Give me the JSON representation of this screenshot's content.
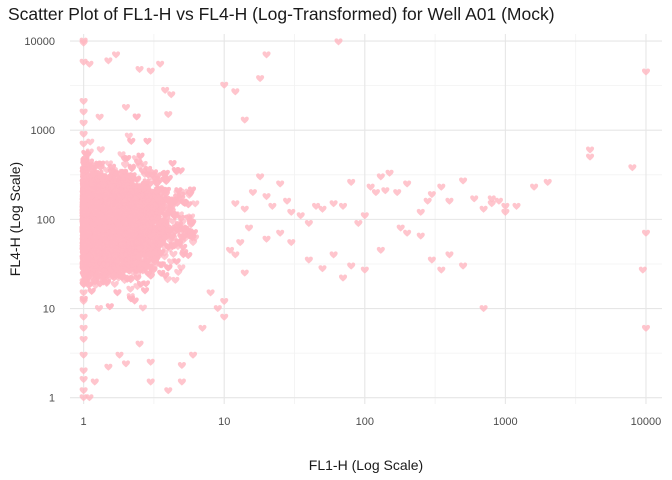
{
  "chart_data": {
    "type": "scatter",
    "title": "Scatter Plot of FL1-H vs FL4-H (Log-Transformed) for Well A01 (Mock)",
    "xlabel": "FL1-H (Log Scale)",
    "ylabel": "FL4-H (Log Scale)",
    "x_scale": "log10",
    "y_scale": "log10",
    "xlim": [
      0.8,
      13000
    ],
    "ylim": [
      0.85,
      12000
    ],
    "x_ticks": [
      1,
      10,
      100,
      1000,
      10000
    ],
    "x_tick_labels": [
      "1",
      "10",
      "100",
      "1000",
      "10000"
    ],
    "y_ticks": [
      1,
      10,
      100,
      1000,
      10000
    ],
    "y_tick_labels": [
      "1",
      "10",
      "100",
      "1000",
      "10000"
    ],
    "grid": true,
    "legend": "none",
    "marker": "heart",
    "point_color": "#FFB6C1",
    "points": [
      [
        1,
        10000
      ],
      [
        1,
        9500
      ],
      [
        1,
        5800
      ],
      [
        1.1,
        5500
      ],
      [
        1.5,
        6000
      ],
      [
        1.7,
        7000
      ],
      [
        2.5,
        4800
      ],
      [
        3,
        4600
      ],
      [
        3.5,
        5500
      ],
      [
        3.8,
        2800
      ],
      [
        4.2,
        2500
      ],
      [
        10,
        3200
      ],
      [
        12,
        2700
      ],
      [
        14,
        1300
      ],
      [
        18,
        3800
      ],
      [
        20,
        7000
      ],
      [
        65,
        9800
      ],
      [
        4,
        1500
      ],
      [
        1.3,
        1400
      ],
      [
        2,
        1800
      ],
      [
        1,
        2100
      ],
      [
        1,
        1600
      ],
      [
        1,
        1200
      ],
      [
        1,
        900
      ],
      [
        1,
        700
      ],
      [
        1,
        20
      ],
      [
        1,
        15
      ],
      [
        1,
        12
      ],
      [
        1,
        8
      ],
      [
        1,
        6
      ],
      [
        1,
        4.5
      ],
      [
        1,
        3
      ],
      [
        1,
        2
      ],
      [
        1,
        1.6
      ],
      [
        1,
        1.2
      ],
      [
        1.1,
        1
      ],
      [
        1,
        1
      ],
      [
        1.2,
        1.5
      ],
      [
        1.5,
        2.2
      ],
      [
        1.8,
        3
      ],
      [
        2,
        2.4
      ],
      [
        3,
        1.5
      ],
      [
        4,
        1.2
      ],
      [
        2.5,
        4
      ],
      [
        5,
        2.3
      ],
      [
        12,
        150
      ],
      [
        14,
        130
      ],
      [
        16,
        200
      ],
      [
        18,
        300
      ],
      [
        20,
        180
      ],
      [
        22,
        140
      ],
      [
        25,
        250
      ],
      [
        28,
        160
      ],
      [
        30,
        120
      ],
      [
        35,
        110
      ],
      [
        40,
        90
      ],
      [
        45,
        140
      ],
      [
        50,
        130
      ],
      [
        60,
        150
      ],
      [
        70,
        140
      ],
      [
        80,
        260
      ],
      [
        90,
        90
      ],
      [
        100,
        110
      ],
      [
        110,
        230
      ],
      [
        120,
        200
      ],
      [
        130,
        300
      ],
      [
        140,
        210
      ],
      [
        150,
        330
      ],
      [
        170,
        200
      ],
      [
        200,
        250
      ],
      [
        250,
        120
      ],
      [
        280,
        160
      ],
      [
        300,
        190
      ],
      [
        350,
        230
      ],
      [
        400,
        160
      ],
      [
        500,
        270
      ],
      [
        600,
        170
      ],
      [
        700,
        130
      ],
      [
        800,
        150
      ],
      [
        900,
        160
      ],
      [
        1000,
        120
      ],
      [
        1200,
        140
      ],
      [
        1600,
        230
      ],
      [
        2000,
        260
      ],
      [
        4000,
        600
      ],
      [
        4000,
        500
      ],
      [
        8000,
        380
      ],
      [
        10000,
        4500
      ],
      [
        10000,
        70
      ],
      [
        9500,
        27
      ],
      [
        10000,
        6
      ],
      [
        1000,
        140
      ],
      [
        800,
        170
      ],
      [
        20,
        60
      ],
      [
        30,
        55
      ],
      [
        40,
        35
      ],
      [
        50,
        28
      ],
      [
        60,
        40
      ],
      [
        70,
        22
      ],
      [
        80,
        30
      ],
      [
        100,
        27
      ],
      [
        130,
        45
      ],
      [
        180,
        80
      ],
      [
        200,
        70
      ],
      [
        250,
        65
      ],
      [
        300,
        35
      ],
      [
        350,
        27
      ],
      [
        400,
        40
      ],
      [
        500,
        30
      ],
      [
        15,
        80
      ],
      [
        25,
        70
      ],
      [
        12,
        40
      ],
      [
        14,
        25
      ],
      [
        10,
        8
      ],
      [
        10,
        12
      ],
      [
        9,
        10
      ],
      [
        8,
        15
      ],
      [
        7,
        6
      ],
      [
        6,
        3
      ],
      [
        5,
        1.5
      ],
      [
        3,
        2.5
      ],
      [
        11,
        45
      ],
      [
        13,
        55
      ],
      [
        700,
        10
      ]
    ]
  }
}
